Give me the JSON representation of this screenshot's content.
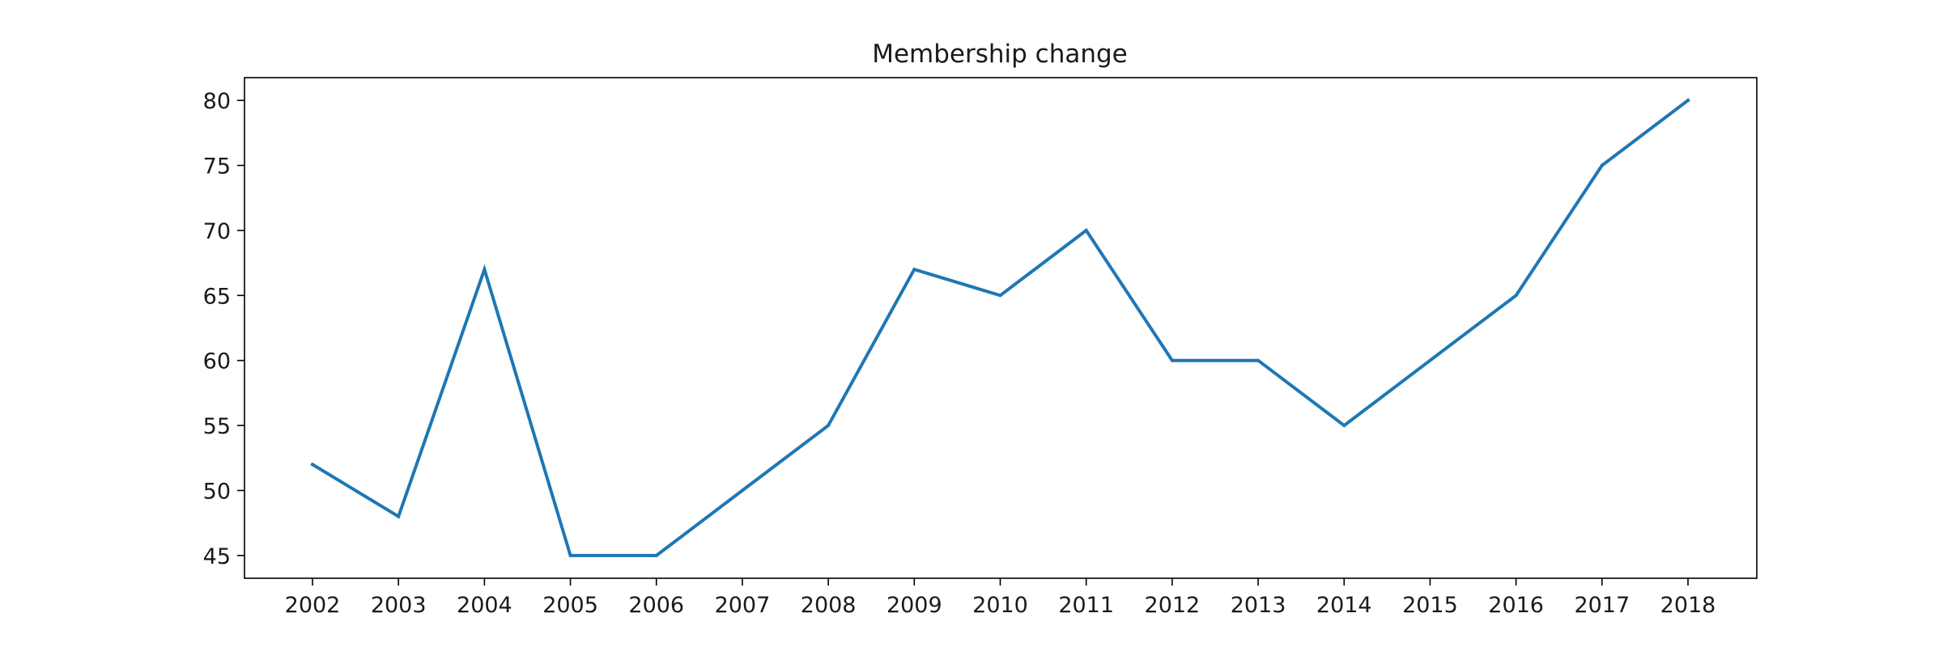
{
  "chart_data": {
    "type": "line",
    "title": "Membership change",
    "xlabel": "",
    "ylabel": "",
    "categories": [
      "2002",
      "2003",
      "2004",
      "2005",
      "2006",
      "2007",
      "2008",
      "2009",
      "2010",
      "2011",
      "2012",
      "2013",
      "2014",
      "2015",
      "2016",
      "2017",
      "2018"
    ],
    "series": [
      {
        "values": [
          52,
          48,
          67,
          45,
          45,
          50,
          55,
          67,
          65,
          70,
          60,
          60,
          55,
          60,
          65,
          75,
          80
        ],
        "color": "#1f77b4"
      }
    ],
    "yticks": [
      45,
      50,
      55,
      60,
      65,
      70,
      75,
      80
    ],
    "ylim": [
      43.25,
      81.75
    ],
    "grid": false,
    "legend": "none"
  }
}
